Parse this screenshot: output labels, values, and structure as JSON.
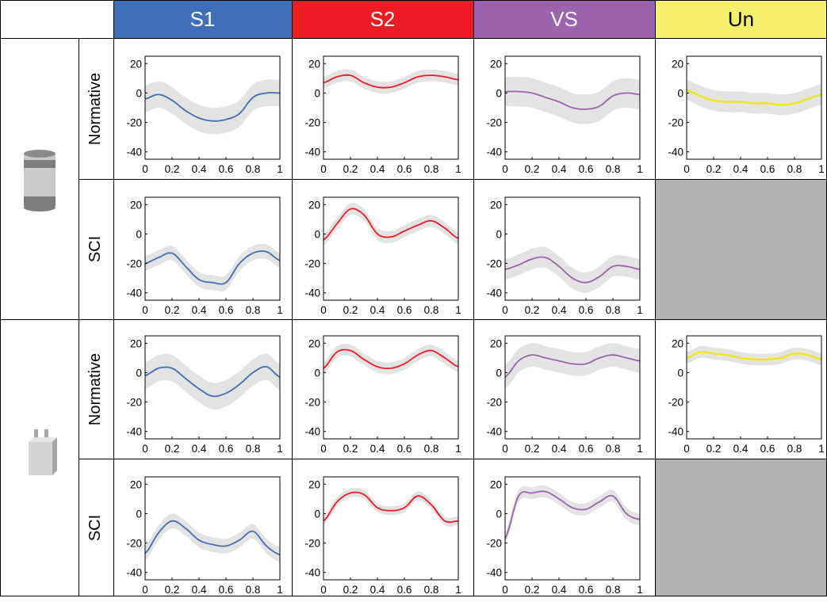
{
  "columns": [
    {
      "label": "S1",
      "color": "#3f6fb8"
    },
    {
      "label": "S2",
      "color": "#ed1c24"
    },
    {
      "label": "VS",
      "color": "#9b62ad"
    },
    {
      "label": "Un",
      "color": "#f5ef6c"
    }
  ],
  "rows": [
    {
      "object_icon": "cylinder-icon",
      "labels": [
        "Normative",
        "SCI"
      ]
    },
    {
      "object_icon": "plug-icon",
      "labels": [
        "Normative",
        "SCI"
      ]
    }
  ],
  "colors": {
    "line_un": "#f0e800",
    "band": "#e3e3e3",
    "empty_cell": "#b3b3b3"
  },
  "chart_data": {
    "type": "line",
    "xlim": [
      0,
      1
    ],
    "ylim": [
      -45,
      25
    ],
    "xticks": [
      0,
      0.2,
      0.4,
      0.6,
      0.8,
      1
    ],
    "xtick_labels": [
      "0",
      "0.2",
      "0.4",
      "0.6",
      "0.8",
      "1"
    ],
    "yticks": [
      20,
      0,
      -20,
      -40
    ],
    "ytick_labels": [
      "20",
      "0",
      "-20",
      "-40"
    ],
    "x": [
      0,
      0.1,
      0.2,
      0.3,
      0.4,
      0.5,
      0.6,
      0.7,
      0.8,
      0.9,
      1.0
    ],
    "panels": [
      {
        "row": 0,
        "sub": 0,
        "col": 0,
        "series": "S1",
        "y": [
          -4,
          -1,
          -5,
          -12,
          -17,
          -19,
          -18,
          -14,
          -3,
          0,
          0
        ],
        "band": 9
      },
      {
        "row": 0,
        "sub": 0,
        "col": 1,
        "series": "S2",
        "y": [
          7,
          11,
          12,
          7,
          4,
          4,
          7,
          11,
          12,
          11,
          9
        ],
        "band": 4
      },
      {
        "row": 0,
        "sub": 0,
        "col": 2,
        "series": "VS",
        "y": [
          1,
          1,
          0,
          -3,
          -6,
          -10,
          -11,
          -9,
          -2,
          0,
          -1
        ],
        "band": 10
      },
      {
        "row": 0,
        "sub": 0,
        "col": 3,
        "series": "Un",
        "y": [
          2,
          -2,
          -5,
          -6,
          -6,
          -7,
          -7,
          -8,
          -7,
          -4,
          -1
        ],
        "band": 7
      },
      {
        "row": 0,
        "sub": 1,
        "col": 0,
        "series": "S1",
        "y": [
          -20,
          -16,
          -13,
          -22,
          -31,
          -33,
          -33,
          -20,
          -13,
          -12,
          -18
        ],
        "band": 5
      },
      {
        "row": 0,
        "sub": 1,
        "col": 1,
        "series": "S2",
        "y": [
          -4,
          7,
          17,
          13,
          0,
          -2,
          2,
          6,
          9,
          4,
          -3
        ],
        "band": 4
      },
      {
        "row": 0,
        "sub": 1,
        "col": 2,
        "series": "VS",
        "y": [
          -24,
          -21,
          -17,
          -16,
          -22,
          -30,
          -33,
          -29,
          -22,
          -22,
          -24
        ],
        "band": 7
      },
      {
        "row": 1,
        "sub": 0,
        "col": 0,
        "series": "S1",
        "y": [
          -2,
          3,
          3,
          -4,
          -11,
          -16,
          -14,
          -8,
          0,
          4,
          -3
        ],
        "band": 9
      },
      {
        "row": 1,
        "sub": 0,
        "col": 1,
        "series": "S2",
        "y": [
          3,
          14,
          15,
          9,
          4,
          3,
          6,
          12,
          15,
          10,
          4
        ],
        "band": 4
      },
      {
        "row": 1,
        "sub": 0,
        "col": 2,
        "series": "VS",
        "y": [
          -3,
          8,
          12,
          10,
          8,
          6,
          6,
          10,
          12,
          10,
          8
        ],
        "band": 8
      },
      {
        "row": 1,
        "sub": 0,
        "col": 3,
        "series": "Un",
        "y": [
          10,
          14,
          13,
          12,
          10,
          9,
          9,
          10,
          13,
          12,
          9
        ],
        "band": 4
      },
      {
        "row": 1,
        "sub": 1,
        "col": 0,
        "series": "S1",
        "y": [
          -27,
          -13,
          -5,
          -10,
          -18,
          -21,
          -22,
          -18,
          -12,
          -22,
          -28
        ],
        "band": 5
      },
      {
        "row": 1,
        "sub": 1,
        "col": 1,
        "series": "S2",
        "y": [
          -5,
          8,
          14,
          13,
          4,
          2,
          4,
          12,
          6,
          -5,
          -5
        ],
        "band": 3
      },
      {
        "row": 1,
        "sub": 1,
        "col": 2,
        "series": "VS",
        "y": [
          -17,
          12,
          14,
          15,
          10,
          4,
          3,
          8,
          12,
          0,
          -4
        ],
        "band": 4
      }
    ]
  }
}
